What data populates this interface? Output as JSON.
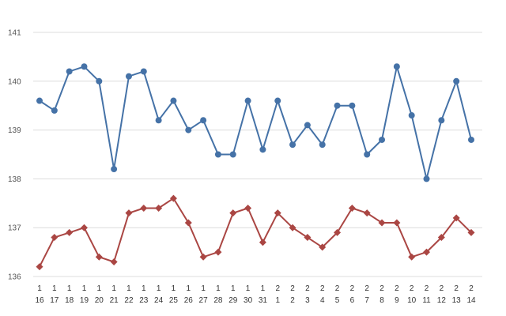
{
  "chart_data": {
    "type": "line",
    "title": "",
    "xlabel": "",
    "ylabel": "",
    "ylim": [
      136,
      141
    ],
    "yticks": [
      "136",
      "137",
      "138",
      "139",
      "140",
      "141"
    ],
    "grid": true,
    "categories": [
      [
        "1",
        "16"
      ],
      [
        "1",
        "17"
      ],
      [
        "1",
        "18"
      ],
      [
        "1",
        "19"
      ],
      [
        "1",
        "20"
      ],
      [
        "1",
        "21"
      ],
      [
        "1",
        "22"
      ],
      [
        "1",
        "23"
      ],
      [
        "1",
        "24"
      ],
      [
        "1",
        "25"
      ],
      [
        "1",
        "26"
      ],
      [
        "1",
        "27"
      ],
      [
        "1",
        "28"
      ],
      [
        "1",
        "29"
      ],
      [
        "1",
        "30"
      ],
      [
        "1",
        "31"
      ],
      [
        "2",
        "1"
      ],
      [
        "2",
        "2"
      ],
      [
        "2",
        "3"
      ],
      [
        "2",
        "4"
      ],
      [
        "2",
        "5"
      ],
      [
        "2",
        "6"
      ],
      [
        "2",
        "7"
      ],
      [
        "2",
        "8"
      ],
      [
        "2",
        "9"
      ],
      [
        "2",
        "10"
      ],
      [
        "2",
        "11"
      ],
      [
        "2",
        "12"
      ],
      [
        "2",
        "13"
      ],
      [
        "2",
        "14"
      ]
    ],
    "series": [
      {
        "color": "#4572a7",
        "marker": "circle",
        "values": [
          139.6,
          139.4,
          140.2,
          140.3,
          140.0,
          138.2,
          140.1,
          140.2,
          139.2,
          139.6,
          139.0,
          139.2,
          138.5,
          138.5,
          139.6,
          138.6,
          139.6,
          138.7,
          139.1,
          138.7,
          139.5,
          139.5,
          138.5,
          138.8,
          140.3,
          139.3,
          138.0,
          139.2,
          140.0,
          138.8
        ]
      },
      {
        "color": "#aa4643",
        "marker": "diamond",
        "values": [
          136.2,
          136.8,
          136.9,
          137.0,
          136.4,
          136.3,
          137.3,
          137.4,
          137.4,
          137.6,
          137.1,
          136.4,
          136.5,
          137.3,
          137.4,
          136.7,
          137.3,
          137.0,
          136.8,
          136.6,
          136.9,
          137.4,
          137.3,
          137.1,
          137.1,
          136.4,
          136.5,
          136.8,
          137.2,
          136.9
        ]
      }
    ]
  }
}
